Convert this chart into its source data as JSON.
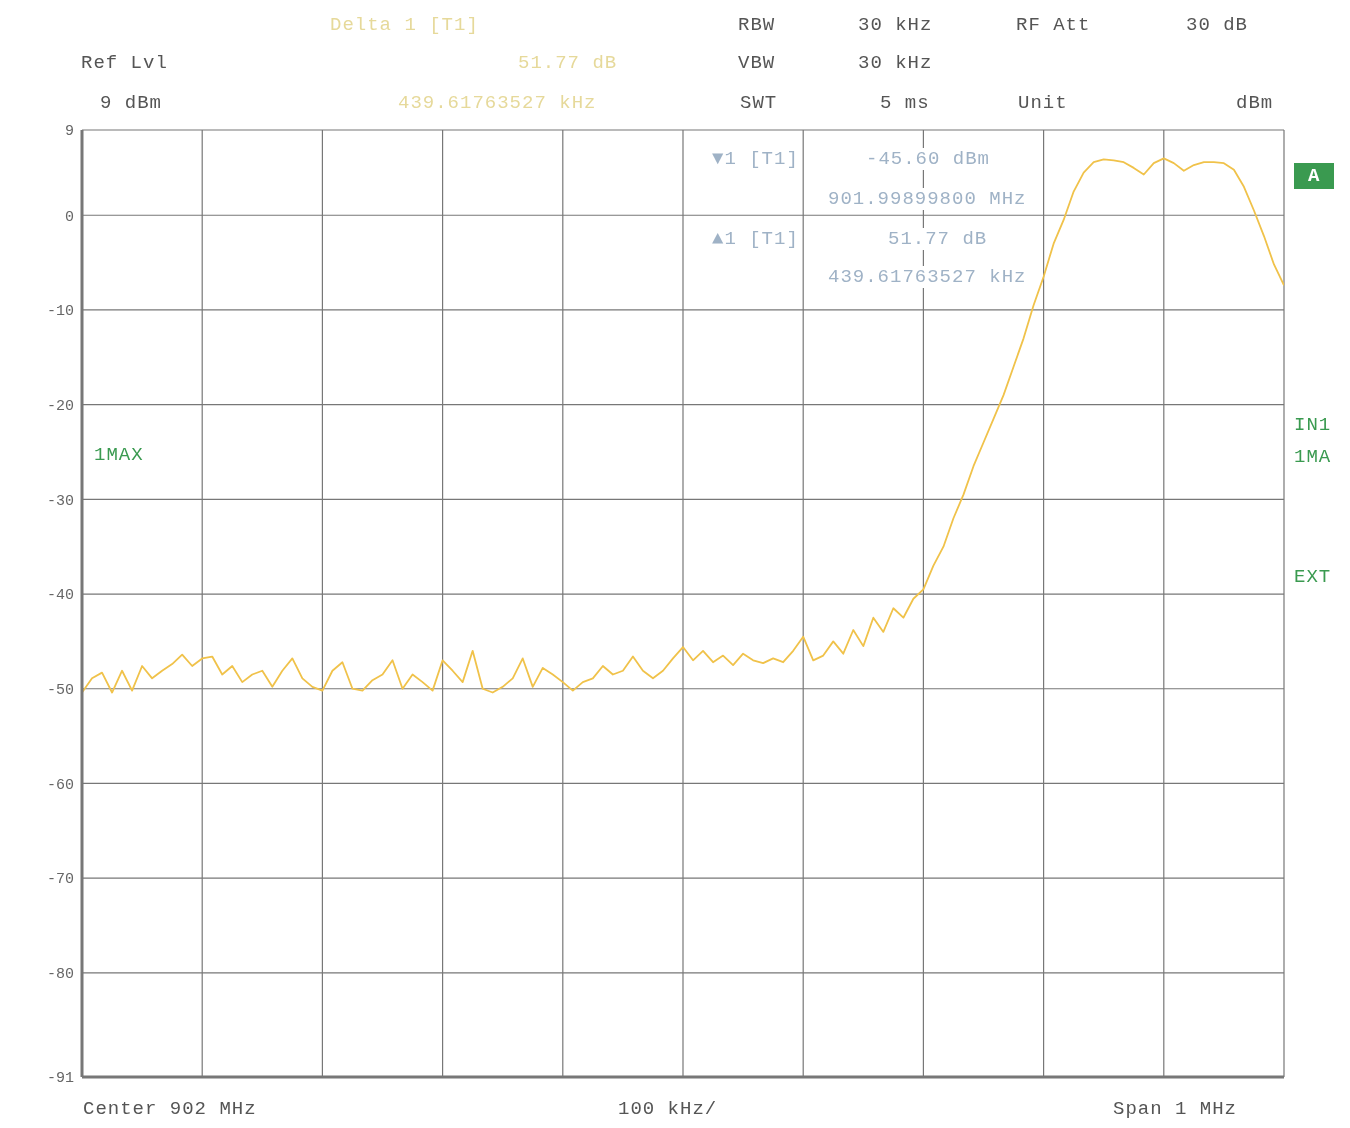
{
  "chart_data": {
    "type": "line",
    "categories": [
      null,
      null,
      null,
      null,
      null,
      null,
      null,
      null,
      null,
      null,
      null,
      null,
      null,
      null,
      null,
      null,
      null,
      null,
      null,
      null,
      null,
      null,
      null,
      null,
      null,
      null,
      null,
      null,
      null,
      null,
      null,
      null,
      null,
      null,
      null,
      null,
      null,
      null,
      null,
      null,
      null,
      null,
      null,
      null,
      null,
      null,
      null,
      null,
      null,
      null,
      null,
      null,
      null,
      null,
      null,
      null,
      null,
      null,
      null,
      null,
      null,
      null,
      null,
      null,
      null,
      null,
      null,
      null,
      null,
      null,
      null,
      null,
      null,
      null,
      null,
      null,
      null,
      null,
      null,
      null,
      null,
      null,
      null,
      null,
      null,
      null,
      null,
      null,
      null,
      null,
      null,
      null,
      null,
      null,
      null,
      null,
      null,
      null,
      null,
      null,
      null,
      null,
      null,
      null,
      null,
      null,
      null,
      null,
      null,
      null,
      null,
      null,
      null,
      null,
      null,
      null,
      null,
      null,
      null,
      null,
      null
    ],
    "series": [
      {
        "color": "#f0c24a",
        "values": [
          -50.4,
          -48.9,
          -48.3,
          -50.4,
          -48.1,
          -50.2,
          -47.6,
          -48.9,
          -48.1,
          -47.4,
          -46.4,
          -47.6,
          -46.8,
          -46.6,
          -48.5,
          -47.6,
          -49.3,
          -48.5,
          -48.1,
          -49.8,
          -48.1,
          -46.8,
          -48.9,
          -49.8,
          -50.2,
          -48.1,
          -47.2,
          -50.0,
          -50.2,
          -49.1,
          -48.5,
          -47.0,
          -50.0,
          -48.5,
          -49.3,
          -50.2,
          -47.0,
          -48.1,
          -49.3,
          -46.0,
          -50.0,
          -50.4,
          -49.8,
          -48.9,
          -46.8,
          -49.8,
          -47.8,
          -48.5,
          -49.3,
          -50.2,
          -49.3,
          -48.9,
          -47.6,
          -48.5,
          -48.1,
          -46.6,
          -48.1,
          -48.9,
          -48.1,
          -46.8,
          -45.6,
          -47.0,
          -46.0,
          -47.2,
          -46.5,
          -47.5,
          -46.3,
          -47.0,
          -47.3,
          -46.8,
          -47.2,
          -46.0,
          -44.5,
          -47.0,
          -46.5,
          -45.0,
          -46.3,
          -43.8,
          -45.5,
          -42.5,
          -44.0,
          -41.5,
          -42.5,
          -40.5,
          -39.5,
          -37.0,
          -35.0,
          -32.0,
          -29.5,
          -26.5,
          -24.0,
          -21.5,
          -19.0,
          -16.0,
          -13.0,
          -9.5,
          -6.5,
          -3.0,
          -0.5,
          2.5,
          4.5,
          5.6,
          5.9,
          5.8,
          5.6,
          5.0,
          4.3,
          5.5,
          6.0,
          5.5,
          4.7,
          5.3,
          5.6,
          5.6,
          5.5,
          4.8,
          3.0,
          0.5,
          -2.2,
          -5.2,
          -7.4
        ]
      }
    ],
    "ylim": [
      -91,
      9
    ],
    "yticks": [
      9,
      0,
      -10,
      -20,
      -30,
      -40,
      -50,
      -60,
      -70,
      -80,
      -91
    ],
    "grid": true,
    "annotations": [
      "Ref Lvl",
      "9 dBm",
      "Delta 1 [T1]",
      "51.77 dB",
      "439.61763527 kHz",
      "RBW",
      "30 kHz",
      "VBW",
      "30 kHz",
      "SWT",
      "5 ms",
      "RF Att",
      "30 dB",
      "Unit",
      "dBm",
      "▼1 [T1]",
      "-45.60 dBm",
      "901.99899800 MHz",
      "▲1 [T1]",
      "51.77 dB",
      "439.61763527 kHz",
      "A",
      "1MAX",
      "IN1",
      "1MA",
      "EXT",
      "Center 902 MHz",
      "100 kHz/",
      "Span 1 MHz"
    ]
  }
}
